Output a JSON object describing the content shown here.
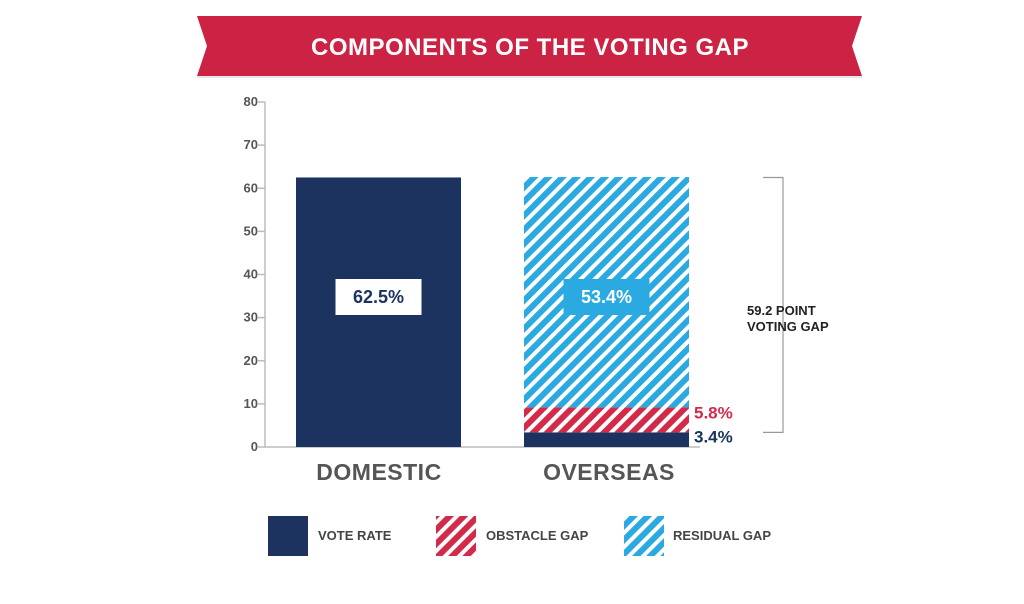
{
  "title": "COMPONENTS OF THE VOTING GAP",
  "colors": {
    "banner": "#cc2244",
    "navy": "#1c3360",
    "red": "#d42a4a",
    "blue": "#2aaae0",
    "axis": "#bbbbbb",
    "text": "#555555"
  },
  "chart_data": {
    "type": "bar",
    "stacked": true,
    "categories": [
      "DOMESTIC",
      "OVERSEAS"
    ],
    "ylim": [
      0,
      80
    ],
    "yticks": [
      0,
      10,
      20,
      30,
      40,
      50,
      60,
      70,
      80
    ],
    "grid": false,
    "legend_position": "bottom",
    "series": [
      {
        "name": "VOTE RATE",
        "pattern": "solid",
        "values": [
          62.5,
          3.4
        ],
        "labels": [
          "62.5%",
          "3.4%"
        ]
      },
      {
        "name": "OBSTACLE GAP",
        "pattern": "hatched",
        "values": [
          0,
          5.8
        ],
        "labels": [
          "",
          "5.8%"
        ]
      },
      {
        "name": "RESIDUAL GAP",
        "pattern": "hatched",
        "values": [
          0,
          53.4
        ],
        "labels": [
          "",
          "53.4%"
        ]
      }
    ],
    "annotation": {
      "line1": "59.2 POINT",
      "line2": "VOTING GAP"
    }
  }
}
